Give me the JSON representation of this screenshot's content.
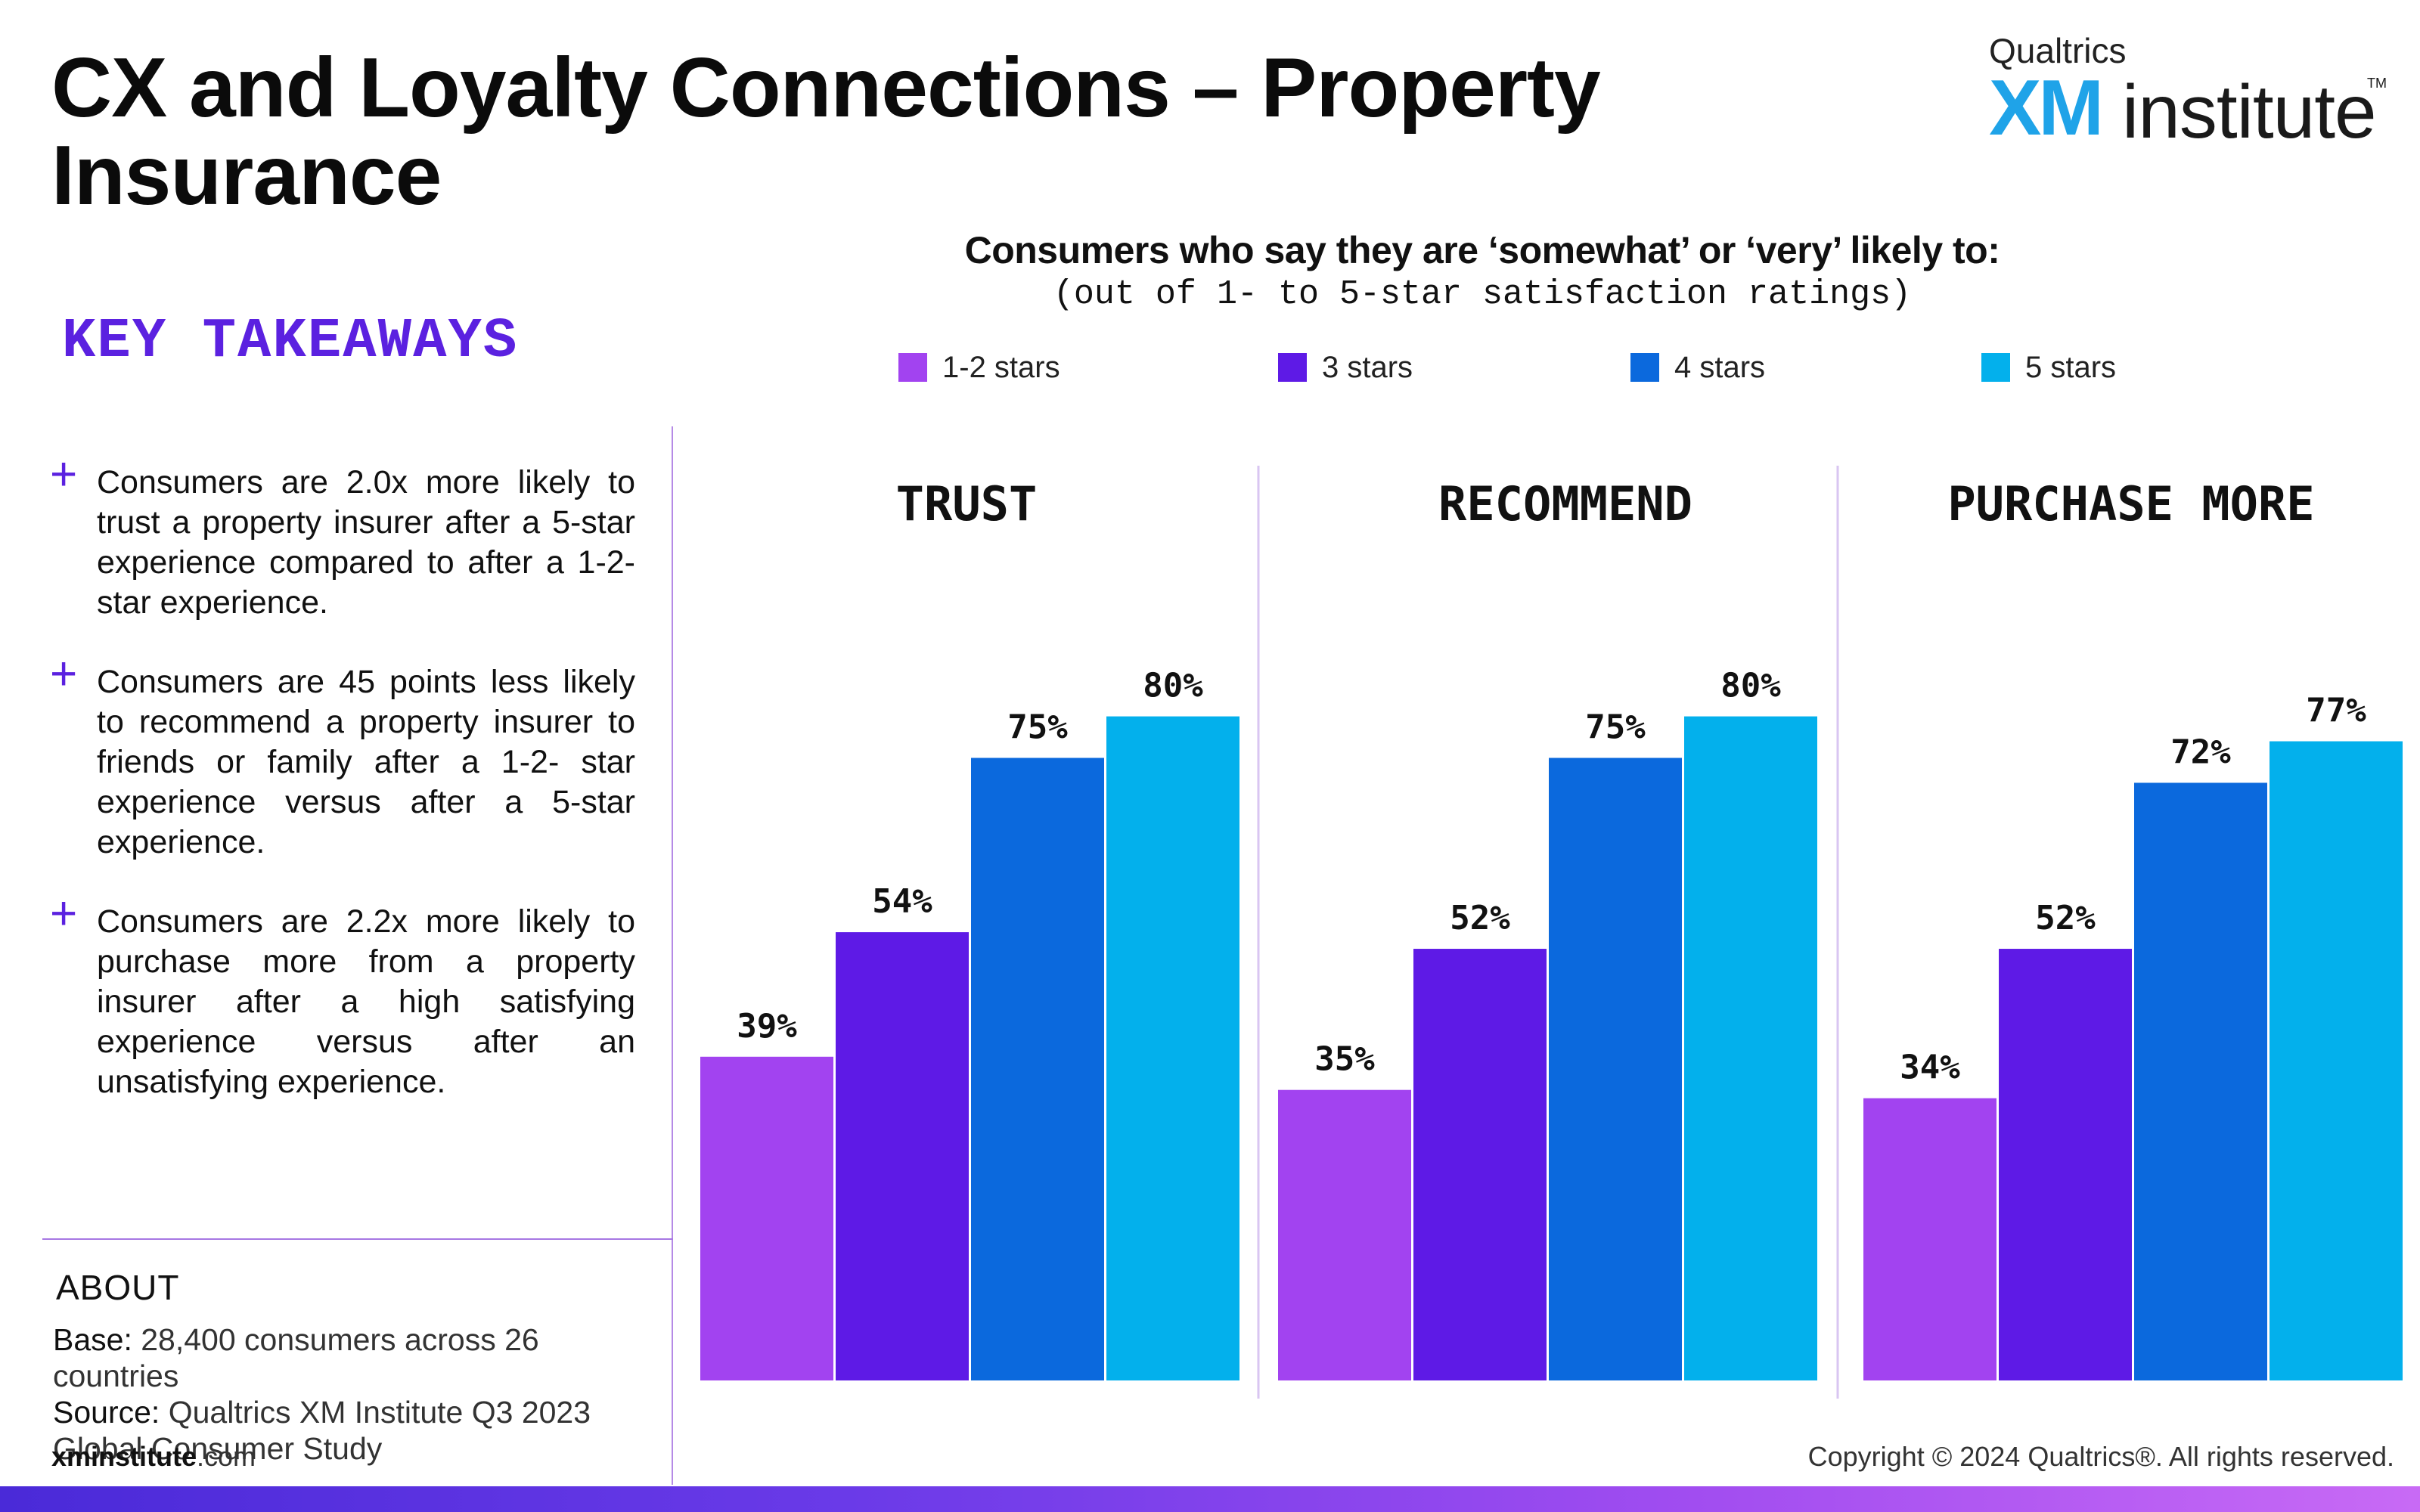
{
  "page": {
    "title": "CX and Loyalty Connections – Property Insurance",
    "logo": {
      "top": "Qualtrics",
      "xm": "XM",
      "institute": "institute",
      "tm": "TM"
    },
    "key_takeaways_heading": "KEY TAKEAWAYS",
    "takeaways": [
      "Consumers are 2.0x more likely to trust a property insurer after a 5-star experience compared to after a 1-2-star experience.",
      "Consumers are 45 points less likely to recommend a property insurer to friends or family after a 1-2- star experience versus after a 5-star experience.",
      "Consumers are 2.2x more likely to purchase more from a property insurer after a high satisfying experience versus after an unsatisfying experience."
    ],
    "about": {
      "heading": "ABOUT",
      "base_label": "Base:",
      "base_value": "28,400 consumers across 26 countries",
      "source_label": "Source:",
      "source_value": "Qualtrics XM Institute Q3 2023 Global Consumer Study"
    },
    "site_bold": "xminstitute",
    "site_rest": ".com",
    "copyright": "Copyright © 2024 Qualtrics®. All rights reserved.",
    "colors": {
      "accent": "#5b21e0",
      "s1": "#a243f0",
      "s2": "#5e1ae6",
      "s3": "#0b69dd",
      "s4": "#03b0ec"
    }
  },
  "chart_data": {
    "type": "bar",
    "title": "Consumers who say they are ‘somewhat’ or ‘very’ likely to:",
    "subtitle": "(out of 1- to 5-star satisfaction ratings)",
    "ylim": [
      0,
      100
    ],
    "series": [
      {
        "name": "1-2 stars",
        "color": "#a243f0"
      },
      {
        "name": "3 stars",
        "color": "#5e1ae6"
      },
      {
        "name": "4 stars",
        "color": "#0b69dd"
      },
      {
        "name": "5 stars",
        "color": "#03b0ec"
      }
    ],
    "panels": [
      {
        "label": "TRUST",
        "values": [
          39,
          54,
          75,
          80
        ]
      },
      {
        "label": "RECOMMEND",
        "values": [
          35,
          52,
          75,
          80
        ]
      },
      {
        "label": "PURCHASE MORE",
        "values": [
          34,
          52,
          72,
          77
        ]
      }
    ],
    "value_suffix": "%"
  }
}
